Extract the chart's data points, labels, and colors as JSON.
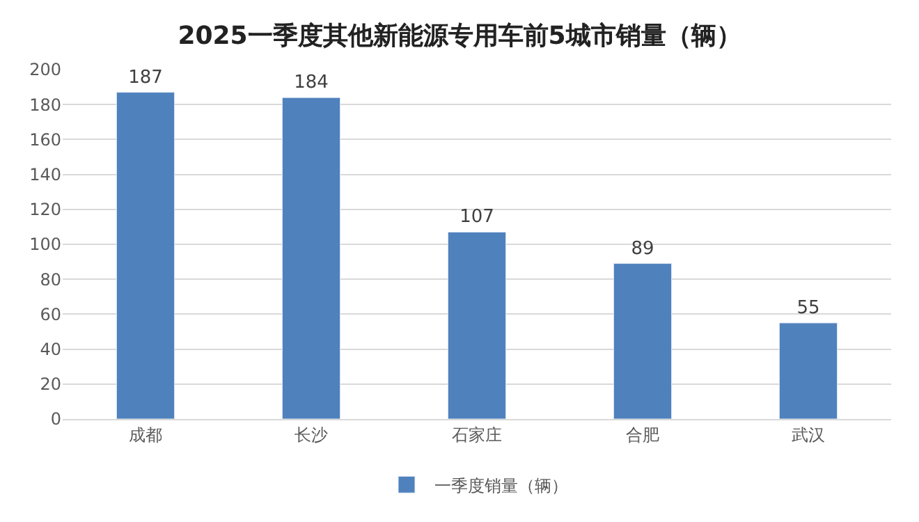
{
  "chart_data": {
    "type": "bar",
    "title": "2025一季度其他新能源专用车前5城市销量（辆）",
    "categories": [
      "成都",
      "长沙",
      "石家庄",
      "合肥",
      "武汉"
    ],
    "series": [
      {
        "name": "一季度销量（辆）",
        "color": "#4f81bd",
        "values": [
          187,
          184,
          107,
          89,
          55
        ]
      }
    ],
    "ylim": [
      0,
      200
    ],
    "yticks": [
      0,
      20,
      40,
      60,
      80,
      100,
      120,
      140,
      160,
      180,
      200
    ],
    "grid": "y",
    "legend": "bottom",
    "data_labels": true
  }
}
